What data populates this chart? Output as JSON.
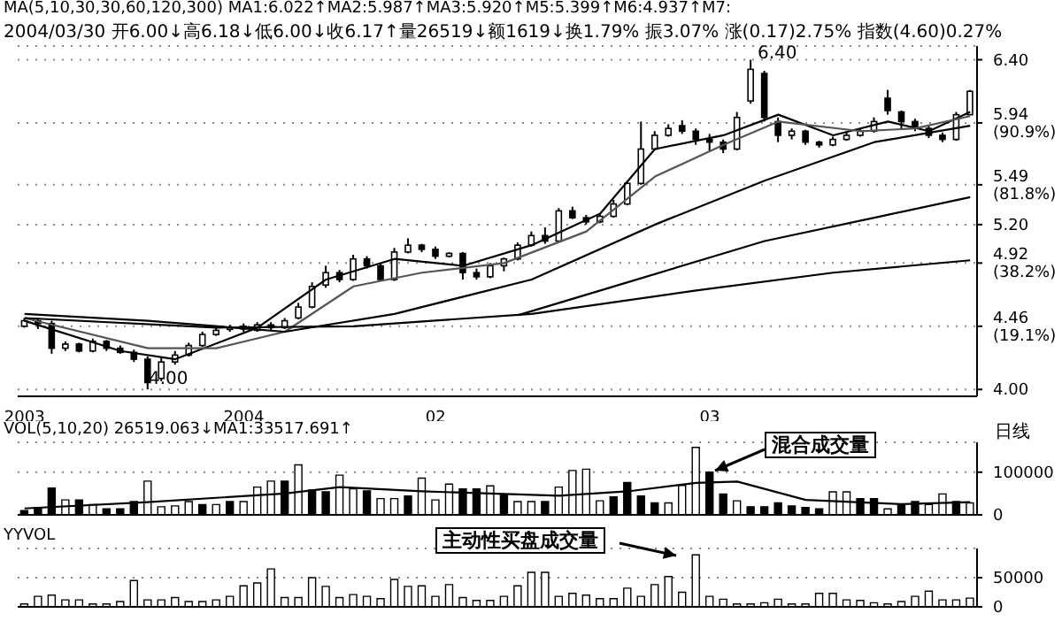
{
  "chart_data": [
    {
      "type": "candlestick",
      "title": "MA(5,10,30,30,60,120,300) MA1:6.022↑MA2:5.987↑MA3:5.920↑M5:5.399↑M6:4.937↑M7:",
      "subtitle": "2004/03/30 开6.00↓高6.18↓低6.00↓收6.17↑量26519↓额1619↓换1.79% 振3.07% 涨(0.17)2.75% 指数(4.60)0.27%",
      "categories": [
        "2003",
        null,
        null,
        null,
        null,
        null,
        null,
        null,
        null,
        null,
        null,
        null,
        null,
        null,
        null,
        null,
        "2004",
        null,
        null,
        null,
        null,
        null,
        null,
        null,
        null,
        null,
        null,
        null,
        null,
        null,
        "02",
        null,
        null,
        null,
        null,
        null,
        null,
        null,
        null,
        null,
        null,
        null,
        null,
        null,
        null,
        null,
        null,
        null,
        null,
        null,
        "03",
        null,
        null,
        null,
        null,
        null,
        null,
        null,
        null,
        null,
        null,
        null,
        null,
        null,
        null,
        null,
        null,
        null,
        null,
        null
      ],
      "ohlc": [
        [
          4.46,
          4.52,
          4.45,
          4.5
        ],
        [
          4.5,
          4.52,
          4.44,
          4.48
        ],
        [
          4.48,
          4.5,
          4.26,
          4.3
        ],
        [
          4.3,
          4.35,
          4.28,
          4.33
        ],
        [
          4.33,
          4.34,
          4.27,
          4.28
        ],
        [
          4.28,
          4.37,
          4.27,
          4.35
        ],
        [
          4.35,
          4.36,
          4.28,
          4.3
        ],
        [
          4.3,
          4.32,
          4.26,
          4.27
        ],
        [
          4.27,
          4.29,
          4.2,
          4.22
        ],
        [
          4.22,
          4.24,
          4.0,
          4.05
        ],
        [
          4.08,
          4.24,
          4.06,
          4.2
        ],
        [
          4.2,
          4.28,
          4.18,
          4.25
        ],
        [
          4.25,
          4.34,
          4.24,
          4.32
        ],
        [
          4.32,
          4.42,
          4.31,
          4.4
        ],
        [
          4.4,
          4.45,
          4.39,
          4.43
        ],
        [
          4.45,
          4.47,
          4.42,
          4.45
        ],
        [
          4.46,
          4.48,
          4.42,
          4.44
        ],
        [
          4.43,
          4.49,
          4.42,
          4.47
        ],
        [
          4.47,
          4.49,
          4.43,
          4.45
        ],
        [
          4.45,
          4.52,
          4.44,
          4.5
        ],
        [
          4.52,
          4.63,
          4.51,
          4.6
        ],
        [
          4.6,
          4.78,
          4.59,
          4.75
        ],
        [
          4.76,
          4.9,
          4.74,
          4.85
        ],
        [
          4.85,
          4.87,
          4.78,
          4.8
        ],
        [
          4.8,
          4.98,
          4.79,
          4.95
        ],
        [
          4.95,
          4.97,
          4.88,
          4.9
        ],
        [
          4.9,
          4.92,
          4.79,
          4.8
        ],
        [
          4.8,
          5.03,
          4.79,
          5.0
        ],
        [
          5.0,
          5.1,
          4.99,
          5.05
        ],
        [
          5.05,
          5.06,
          5.0,
          5.02
        ],
        [
          5.02,
          5.04,
          4.95,
          4.97
        ],
        [
          4.97,
          5.0,
          4.96,
          4.99
        ],
        [
          4.99,
          5.0,
          4.8,
          4.85
        ],
        [
          4.85,
          4.88,
          4.8,
          4.82
        ],
        [
          4.82,
          4.92,
          4.81,
          4.9
        ],
        [
          4.9,
          4.96,
          4.86,
          4.95
        ],
        [
          4.95,
          5.07,
          4.94,
          5.05
        ],
        [
          5.05,
          5.15,
          5.04,
          5.12
        ],
        [
          5.12,
          5.18,
          5.06,
          5.08
        ],
        [
          5.08,
          5.32,
          5.07,
          5.3
        ],
        [
          5.3,
          5.33,
          5.24,
          5.25
        ],
        [
          5.25,
          5.27,
          5.2,
          5.22
        ],
        [
          5.22,
          5.28,
          5.21,
          5.26
        ],
        [
          5.26,
          5.38,
          5.25,
          5.35
        ],
        [
          5.35,
          5.52,
          5.34,
          5.5
        ],
        [
          5.5,
          5.95,
          5.49,
          5.75
        ],
        [
          5.75,
          5.88,
          5.74,
          5.85
        ],
        [
          5.85,
          5.93,
          5.84,
          5.9
        ],
        [
          5.92,
          5.96,
          5.86,
          5.88
        ],
        [
          5.88,
          5.9,
          5.78,
          5.82
        ],
        [
          5.82,
          5.86,
          5.74,
          5.8
        ],
        [
          5.8,
          5.82,
          5.72,
          5.75
        ],
        [
          5.75,
          6.02,
          5.74,
          5.98
        ],
        [
          6.1,
          6.4,
          6.08,
          6.33
        ],
        [
          6.3,
          6.32,
          5.95,
          5.98
        ],
        [
          5.95,
          5.98,
          5.8,
          5.85
        ],
        [
          5.85,
          5.9,
          5.82,
          5.88
        ],
        [
          5.88,
          5.89,
          5.78,
          5.8
        ],
        [
          5.8,
          5.81,
          5.76,
          5.78
        ],
        [
          5.78,
          5.84,
          5.77,
          5.82
        ],
        [
          5.82,
          5.87,
          5.81,
          5.85
        ],
        [
          5.85,
          5.9,
          5.84,
          5.88
        ],
        [
          5.88,
          5.98,
          5.87,
          5.95
        ],
        [
          6.12,
          6.18,
          6.0,
          6.03
        ],
        [
          6.02,
          6.03,
          5.9,
          5.95
        ],
        [
          5.95,
          5.97,
          5.88,
          5.9
        ],
        [
          5.9,
          5.92,
          5.83,
          5.85
        ],
        [
          5.85,
          5.87,
          5.8,
          5.82
        ],
        [
          5.82,
          6.02,
          5.81,
          6.0
        ],
        [
          6.0,
          6.18,
          6.0,
          6.17
        ]
      ],
      "series": [
        {
          "type": "line",
          "color": "#000000",
          "values": [
            4.5,
            null,
            null,
            null,
            null,
            null,
            null,
            4.28,
            null,
            null,
            null,
            4.22,
            null,
            null,
            null,
            null,
            null,
            4.45,
            null,
            null,
            null,
            null,
            4.8,
            null,
            null,
            null,
            null,
            4.95,
            null,
            null,
            null,
            null,
            4.9,
            null,
            null,
            null,
            null,
            5.05,
            null,
            null,
            null,
            null,
            5.28,
            null,
            null,
            null,
            5.75,
            null,
            null,
            null,
            null,
            5.85,
            null,
            null,
            null,
            6.0,
            null,
            null,
            null,
            5.85,
            null,
            null,
            null,
            5.95,
            null,
            null,
            5.88,
            null,
            null,
            6.02
          ]
        },
        {
          "type": "line",
          "color": "#555555",
          "values": [
            4.52,
            null,
            null,
            null,
            null,
            null,
            null,
            null,
            null,
            4.3,
            null,
            null,
            null,
            null,
            4.3,
            null,
            null,
            null,
            null,
            4.42,
            null,
            null,
            null,
            null,
            4.75,
            null,
            null,
            null,
            null,
            4.85,
            null,
            null,
            null,
            null,
            null,
            4.92,
            null,
            null,
            null,
            null,
            null,
            5.15,
            null,
            null,
            null,
            null,
            5.55,
            null,
            null,
            null,
            null,
            5.78,
            null,
            null,
            null,
            5.95,
            null,
            null,
            null,
            null,
            null,
            5.88,
            null,
            null,
            null,
            5.9,
            null,
            null,
            null,
            5.99
          ]
        },
        {
          "type": "line",
          "color": "#000000",
          "values": [
            4.55,
            null,
            null,
            null,
            null,
            null,
            null,
            null,
            null,
            4.5,
            null,
            null,
            null,
            null,
            null,
            null,
            null,
            null,
            null,
            4.42,
            null,
            null,
            null,
            null,
            null,
            null,
            null,
            4.55,
            null,
            null,
            null,
            null,
            null,
            null,
            null,
            null,
            null,
            4.8,
            null,
            null,
            null,
            null,
            null,
            null,
            null,
            null,
            5.2,
            null,
            null,
            null,
            null,
            null,
            null,
            null,
            5.52,
            null,
            null,
            null,
            null,
            null,
            null,
            null,
            5.8,
            null,
            null,
            null,
            null,
            null,
            null,
            5.92
          ]
        },
        {
          "type": "line",
          "color": "#000000",
          "values": [
            null,
            null,
            null,
            null,
            null,
            null,
            null,
            null,
            null,
            null,
            null,
            null,
            null,
            null,
            null,
            null,
            null,
            null,
            null,
            null,
            null,
            null,
            null,
            null,
            null,
            null,
            null,
            null,
            null,
            null,
            null,
            null,
            null,
            null,
            null,
            null,
            4.54,
            null,
            null,
            null,
            null,
            null,
            null,
            null,
            4.78,
            null,
            null,
            null,
            null,
            null,
            null,
            null,
            null,
            null,
            5.08,
            null,
            null,
            null,
            null,
            null,
            null,
            null,
            5.25,
            null,
            null,
            null,
            null,
            null,
            null,
            5.4
          ]
        },
        {
          "type": "line",
          "color": "#000000",
          "values": [
            4.52,
            null,
            null,
            null,
            null,
            null,
            null,
            null,
            null,
            null,
            null,
            null,
            null,
            null,
            4.45,
            null,
            null,
            null,
            null,
            null,
            null,
            null,
            null,
            null,
            4.46,
            null,
            null,
            null,
            null,
            null,
            null,
            null,
            null,
            null,
            null,
            null,
            null,
            4.55,
            null,
            null,
            null,
            null,
            null,
            null,
            null,
            null,
            null,
            null,
            null,
            4.72,
            null,
            null,
            null,
            null,
            null,
            null,
            null,
            null,
            null,
            4.85,
            null,
            null,
            null,
            null,
            null,
            null,
            null,
            null,
            null,
            4.94
          ]
        }
      ],
      "ylim": [
        3.95,
        6.5
      ],
      "yticks": [
        {
          "value": 4.0,
          "label": "4.00"
        },
        {
          "value": 4.46,
          "label": "4.46 (19.1%)"
        },
        {
          "value": 4.92,
          "label": "4.92 (38.2%)"
        },
        {
          "value": 5.2,
          "label": "5.20"
        },
        {
          "value": 5.49,
          "label": "5.49 (81.8%)"
        },
        {
          "value": 5.94,
          "label": "5.94 (90.9%)"
        },
        {
          "value": 6.4,
          "label": "6.40"
        }
      ],
      "grid": "y",
      "marker": "none",
      "annotations": [
        "6.40",
        "4.00"
      ]
    },
    {
      "type": "bar",
      "title": "VOL(5,10,20) 26519.063↓MA1:33517.691↑",
      "categories": [
        "2003",
        null,
        null,
        null,
        null,
        null,
        null,
        null,
        null,
        null,
        null,
        null,
        null,
        null,
        null,
        null,
        "2004",
        null,
        null,
        null,
        null,
        null,
        null,
        null,
        null,
        null,
        null,
        null,
        null,
        null,
        "02",
        null,
        null,
        null,
        null,
        null,
        null,
        null,
        null,
        null,
        null,
        null,
        null,
        null,
        null,
        null,
        null,
        null,
        null,
        null,
        "03",
        null,
        null,
        null,
        null,
        null,
        null,
        null,
        null,
        null,
        null,
        null,
        null,
        null,
        null,
        null,
        null,
        null,
        null,
        null
      ],
      "series": [
        {
          "type": "bar",
          "values": [
            10000,
            17000,
            63000,
            35000,
            35000,
            24000,
            14000,
            14000,
            31000,
            79000,
            19000,
            21000,
            31000,
            24000,
            24000,
            31000,
            31000,
            65000,
            79000,
            79000,
            117000,
            58000,
            54000,
            93000,
            61000,
            56000,
            38000,
            38000,
            44000,
            86000,
            35000,
            72000,
            61000,
            61000,
            68000,
            47000,
            31000,
            31000,
            31000,
            65000,
            104000,
            107000,
            33000,
            42000,
            76000,
            44000,
            28000,
            28000,
            69000,
            158000,
            100000,
            49000,
            33000,
            19000,
            19000,
            28000,
            21000,
            17000,
            14000,
            54000,
            54000,
            38000,
            38000,
            14000,
            24000,
            31000,
            24000,
            49000,
            31000,
            28000
          ],
          "colors": [
            "#000000",
            "#000000",
            "#000000",
            "#ffffff",
            "#000000",
            "#ffffff",
            "#000000",
            "#000000",
            "#000000",
            "#ffffff",
            "#ffffff",
            "#ffffff",
            "#ffffff",
            "#000000",
            "#ffffff",
            "#000000",
            "#ffffff",
            "#ffffff",
            "#ffffff",
            "#000000",
            "#ffffff",
            "#000000",
            "#000000",
            "#ffffff",
            "#ffffff",
            "#000000",
            "#ffffff",
            "#ffffff",
            "#000000",
            "#ffffff",
            "#ffffff",
            "#ffffff",
            "#000000",
            "#000000",
            "#ffffff",
            "#000000",
            "#ffffff",
            "#ffffff",
            "#000000",
            "#ffffff",
            "#ffffff",
            "#ffffff",
            "#ffffff",
            "#000000",
            "#000000",
            "#000000",
            "#000000",
            "#ffffff",
            "#ffffff",
            "#ffffff",
            "#000000",
            "#000000",
            "#ffffff",
            "#000000",
            "#000000",
            "#000000",
            "#000000",
            "#000000",
            "#000000",
            "#ffffff",
            "#ffffff",
            "#000000",
            "#000000",
            "#ffffff",
            "#000000",
            "#000000",
            "#ffffff",
            "#ffffff",
            "#000000",
            "#ffffff"
          ]
        },
        {
          "type": "line",
          "color": "#000000",
          "values": [
            15000,
            null,
            null,
            null,
            null,
            null,
            null,
            null,
            null,
            30000,
            null,
            null,
            null,
            null,
            null,
            null,
            null,
            null,
            null,
            50000,
            null,
            null,
            null,
            65000,
            null,
            null,
            null,
            null,
            null,
            55000,
            null,
            null,
            null,
            null,
            null,
            null,
            null,
            null,
            null,
            45000,
            null,
            null,
            null,
            null,
            55000,
            null,
            null,
            null,
            null,
            75000,
            null,
            null,
            78000,
            null,
            null,
            null,
            null,
            35000,
            null,
            null,
            null,
            null,
            null,
            null,
            25000,
            null,
            null,
            null,
            null,
            30000
          ]
        }
      ],
      "ylim": [
        0,
        170000
      ],
      "yticks": [
        0,
        100000
      ],
      "grid": "y",
      "marker": "none",
      "tick_labels": "y",
      "annotations": [
        "混合成交量",
        "日线"
      ]
    },
    {
      "type": "bar",
      "title": "YYVOL",
      "categories": [
        "2003",
        null,
        null,
        null,
        null,
        null,
        null,
        null,
        null,
        null,
        null,
        null,
        null,
        null,
        null,
        null,
        "2004",
        null,
        null,
        null,
        null,
        null,
        null,
        null,
        null,
        null,
        null,
        null,
        null,
        null,
        "02",
        null,
        null,
        null,
        null,
        null,
        null,
        null,
        null,
        null,
        null,
        null,
        null,
        null,
        null,
        null,
        null,
        null,
        null,
        null,
        "03",
        null,
        null,
        null,
        null,
        null,
        null,
        null,
        null,
        null,
        null,
        null,
        null,
        null,
        null,
        null,
        null,
        null,
        null,
        null
      ],
      "series": [
        {
          "type": "bar",
          "color": "#ffffff",
          "values": [
            5000,
            18000,
            20000,
            12000,
            12000,
            5000,
            5000,
            9000,
            45000,
            12000,
            12000,
            16000,
            9000,
            9000,
            12000,
            18000,
            36000,
            41000,
            65000,
            16000,
            16000,
            50000,
            35000,
            16000,
            21000,
            18000,
            14000,
            47000,
            35000,
            36000,
            18000,
            38000,
            16000,
            11000,
            11000,
            18000,
            36000,
            59000,
            59000,
            18000,
            23000,
            20000,
            14000,
            14000,
            32000,
            18000,
            38000,
            52000,
            25000,
            89000,
            18000,
            13000,
            5000,
            5000,
            7000,
            13000,
            5000,
            5000,
            23000,
            23000,
            12000,
            11000,
            7000,
            5000,
            9000,
            18000,
            27000,
            12000,
            12000,
            15000
          ]
        }
      ],
      "ylim": [
        0,
        100000
      ],
      "yticks": [
        0,
        50000
      ],
      "grid": "y",
      "tick_labels": "y",
      "annotations": [
        "主动性买盘成交量"
      ]
    }
  ]
}
